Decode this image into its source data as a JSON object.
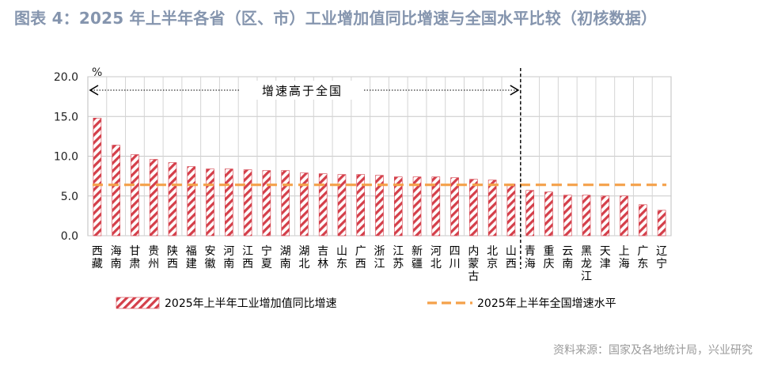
{
  "title": "图表 4：2025 年上半年各省（区、市）工业增加值同比增速与全国水平比较（初核数据）",
  "source": "资料来源：国家及各地统计局，兴业研究",
  "colors": {
    "bar": "#D43F4A",
    "national": "#F4A14A",
    "title": "#8595AE"
  },
  "chart_data": {
    "type": "bar",
    "ylim": [
      0,
      20
    ],
    "yticks": [
      "0.0",
      "5.0",
      "10.0",
      "15.0",
      "20.0"
    ],
    "yunit": "%",
    "grid": true,
    "annotation": "增速高于全国",
    "categories": [
      "西藏",
      "海南",
      "甘肃",
      "贵州",
      "陕西",
      "福建",
      "安徽",
      "河南",
      "江西",
      "宁夏",
      "湖南",
      "湖北",
      "吉林",
      "山东",
      "广西",
      "浙江",
      "江苏",
      "新疆",
      "河北",
      "四川",
      "内蒙古",
      "北京",
      "山西",
      "青海",
      "重庆",
      "云南",
      "黑龙江",
      "天津",
      "上海",
      "广东",
      "辽宁"
    ],
    "series": [
      {
        "name": "2025年上半年工业增加值同比增速",
        "type": "bar",
        "pattern": "hatched",
        "values": [
          14.8,
          11.4,
          10.2,
          9.6,
          9.2,
          8.7,
          8.4,
          8.4,
          8.3,
          8.2,
          8.2,
          7.9,
          7.8,
          7.7,
          7.7,
          7.6,
          7.4,
          7.4,
          7.4,
          7.3,
          7.1,
          7.0,
          6.5,
          5.7,
          5.5,
          5.1,
          5.1,
          5.0,
          5.0,
          3.9,
          3.2
        ]
      },
      {
        "name": "2025年上半年全国增速水平",
        "type": "line",
        "style": "dashed",
        "value": 6.4
      }
    ]
  }
}
